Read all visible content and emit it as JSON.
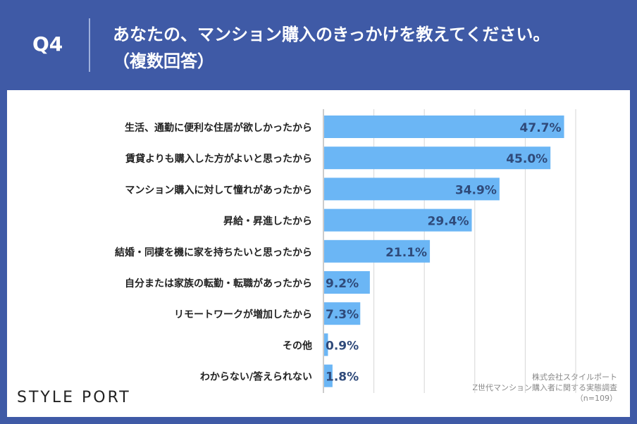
{
  "header": {
    "question_number": "Q4",
    "title_line1": "あなたの、マンション購入のきっかけを教えてください。",
    "title_line2": "（複数回答）"
  },
  "brand": {
    "logo_text": "STYLE PORT"
  },
  "credits": {
    "company": "株式会社スタイルポート",
    "survey": "Z世代マンション購入者に関する実態調査",
    "sample": "（n=109）"
  },
  "colors": {
    "header_bg": "#3f5aa6",
    "bar": "#6bb6f5",
    "value_text": "#2f4a7a"
  },
  "chart_data": {
    "type": "bar",
    "orientation": "horizontal",
    "categories": [
      "生活、通勤に便利な住居が欲しかったから",
      "賃貸よりも購入した方がよいと思ったから",
      "マンション購入に対して憧れがあったから",
      "昇給・昇進したから",
      "結婚・同棲を機に家を持ちたいと思ったから",
      "自分または家族の転勤・転職があったから",
      "リモートワークが増加したから",
      "その他",
      "わからない/答えられない"
    ],
    "values": [
      47.7,
      45.0,
      34.9,
      29.4,
      21.1,
      9.2,
      7.3,
      0.9,
      1.8
    ],
    "value_labels": [
      "47.7%",
      "45.0%",
      "34.9%",
      "29.4%",
      "21.1%",
      "9.2%",
      "7.3%",
      "0.9%",
      "1.8%"
    ],
    "xlim": [
      0,
      50
    ],
    "grid": true,
    "title": "",
    "xlabel": "",
    "ylabel": ""
  }
}
